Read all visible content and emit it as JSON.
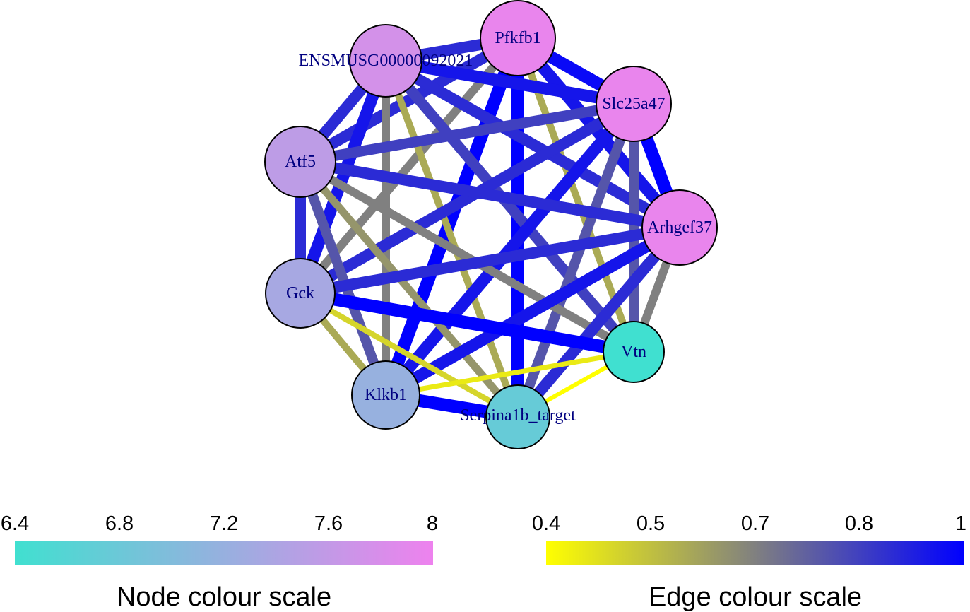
{
  "nodes": [
    {
      "id": "Pfkfb1",
      "label": "Pfkfb1",
      "value": 7.95
    },
    {
      "id": "ENSMUSG00000092021",
      "label": "ENSMUSG00000092021",
      "value": 7.75
    },
    {
      "id": "Slc25a47",
      "label": "Slc25a47",
      "value": 7.95
    },
    {
      "id": "Atf5",
      "label": "Atf5",
      "value": 7.55
    },
    {
      "id": "Arhgef37",
      "label": "Arhgef37",
      "value": 7.95
    },
    {
      "id": "Gck",
      "label": "Gck",
      "value": 7.35
    },
    {
      "id": "Vtn",
      "label": "Vtn",
      "value": 6.4
    },
    {
      "id": "Klkb1",
      "label": "Klkb1",
      "value": 7.2
    },
    {
      "id": "Serpina1b_target",
      "label": "Serpina1b_target",
      "value": 6.75
    }
  ],
  "edges": [
    {
      "source": "Pfkfb1",
      "target": "ENSMUSG00000092021",
      "weight": 0.9
    },
    {
      "source": "Pfkfb1",
      "target": "Slc25a47",
      "weight": 0.98
    },
    {
      "source": "Pfkfb1",
      "target": "Atf5",
      "weight": 0.9
    },
    {
      "source": "Pfkfb1",
      "target": "Arhgef37",
      "weight": 0.95
    },
    {
      "source": "Pfkfb1",
      "target": "Gck",
      "weight": 0.7
    },
    {
      "source": "Pfkfb1",
      "target": "Vtn",
      "weight": 0.6
    },
    {
      "source": "Pfkfb1",
      "target": "Klkb1",
      "weight": 1.0
    },
    {
      "source": "Pfkfb1",
      "target": "Serpina1b_target",
      "weight": 1.0
    },
    {
      "source": "ENSMUSG00000092021",
      "target": "Slc25a47",
      "weight": 0.95
    },
    {
      "source": "ENSMUSG00000092021",
      "target": "Atf5",
      "weight": 0.9
    },
    {
      "source": "ENSMUSG00000092021",
      "target": "Arhgef37",
      "weight": 0.9
    },
    {
      "source": "ENSMUSG00000092021",
      "target": "Gck",
      "weight": 0.95
    },
    {
      "source": "ENSMUSG00000092021",
      "target": "Vtn",
      "weight": 0.85
    },
    {
      "source": "ENSMUSG00000092021",
      "target": "Klkb1",
      "weight": 0.7
    },
    {
      "source": "ENSMUSG00000092021",
      "target": "Serpina1b_target",
      "weight": 0.6
    },
    {
      "source": "Slc25a47",
      "target": "Atf5",
      "weight": 0.85
    },
    {
      "source": "Slc25a47",
      "target": "Arhgef37",
      "weight": 1.0
    },
    {
      "source": "Slc25a47",
      "target": "Gck",
      "weight": 0.9
    },
    {
      "source": "Slc25a47",
      "target": "Vtn",
      "weight": 0.8
    },
    {
      "source": "Slc25a47",
      "target": "Klkb1",
      "weight": 0.95
    },
    {
      "source": "Slc25a47",
      "target": "Serpina1b_target",
      "weight": 0.8
    },
    {
      "source": "Atf5",
      "target": "Arhgef37",
      "weight": 0.9
    },
    {
      "source": "Atf5",
      "target": "Gck",
      "weight": 0.9
    },
    {
      "source": "Atf5",
      "target": "Vtn",
      "weight": 0.7
    },
    {
      "source": "Atf5",
      "target": "Klkb1",
      "weight": 0.8
    },
    {
      "source": "Atf5",
      "target": "Serpina1b_target",
      "weight": 0.65
    },
    {
      "source": "Arhgef37",
      "target": "Gck",
      "weight": 0.9
    },
    {
      "source": "Arhgef37",
      "target": "Vtn",
      "weight": 0.7
    },
    {
      "source": "Arhgef37",
      "target": "Klkb1",
      "weight": 0.95
    },
    {
      "source": "Arhgef37",
      "target": "Serpina1b_target",
      "weight": 0.9
    },
    {
      "source": "Gck",
      "target": "Vtn",
      "weight": 1.0
    },
    {
      "source": "Gck",
      "target": "Klkb1",
      "weight": 0.6
    },
    {
      "source": "Gck",
      "target": "Serpina1b_target",
      "weight": 0.5
    },
    {
      "source": "Vtn",
      "target": "Klkb1",
      "weight": 0.45
    },
    {
      "source": "Vtn",
      "target": "Serpina1b_target",
      "weight": 0.4
    },
    {
      "source": "Klkb1",
      "target": "Serpina1b_target",
      "weight": 1.0
    }
  ],
  "node_scale": {
    "title": "Node colour scale",
    "ticks": [
      "6.4",
      "6.8",
      "7.2",
      "7.6",
      "8"
    ],
    "min": 6.4,
    "max": 8,
    "color_low": "#40e0d0",
    "color_high": "#ee82ee"
  },
  "edge_scale": {
    "title": "Edge colour scale",
    "ticks": [
      "0.4",
      "0.5",
      "0.7",
      "0.8",
      "1"
    ],
    "tick_values": [
      0.4,
      0.5,
      0.7,
      0.8,
      1.0
    ],
    "min": 0.4,
    "max": 1,
    "color_low": "#ffff00",
    "color_mid": "#808080",
    "color_high": "#0000ff"
  }
}
